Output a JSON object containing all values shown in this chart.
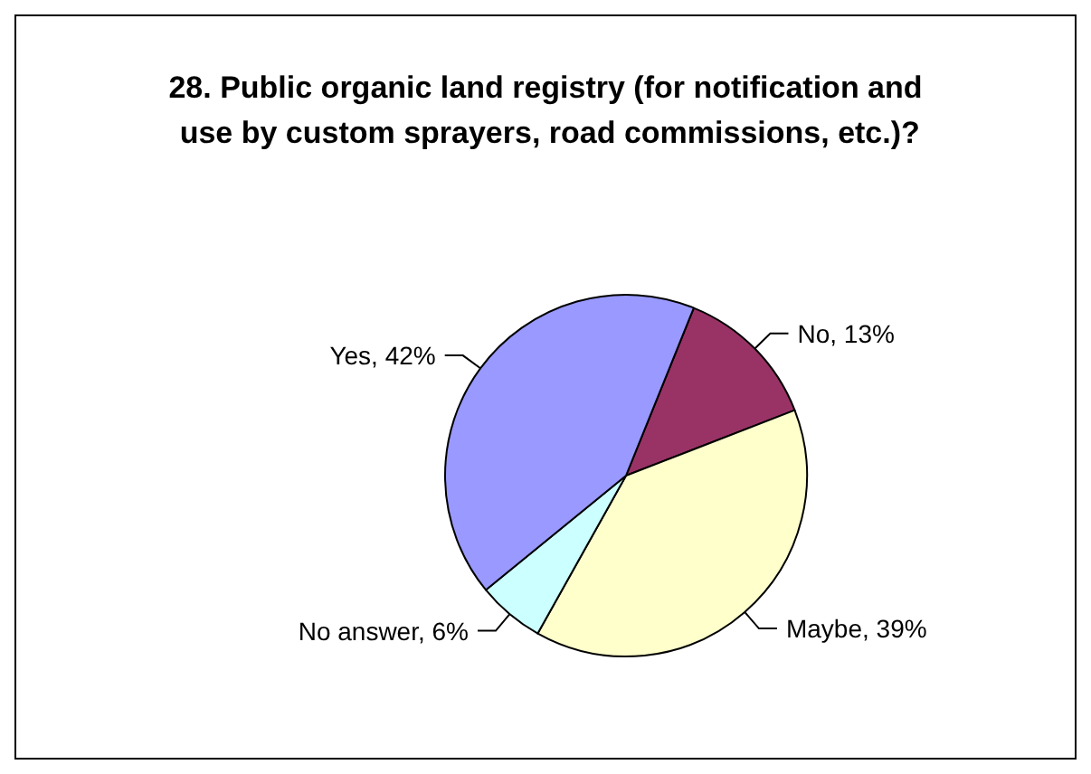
{
  "chart_data": {
    "type": "pie",
    "title": "28. Public organic land registry (for notification and use by custom sprayers, road commissions, etc.)?",
    "categories": [
      "No",
      "Maybe",
      "No answer",
      "Yes"
    ],
    "values": [
      13,
      39,
      6,
      42
    ],
    "colors": [
      "#993366",
      "#ffffcc",
      "#ccffff",
      "#9999ff"
    ],
    "value_labels": [
      "13%",
      "39%",
      "6%",
      "42%"
    ],
    "legend": false
  }
}
